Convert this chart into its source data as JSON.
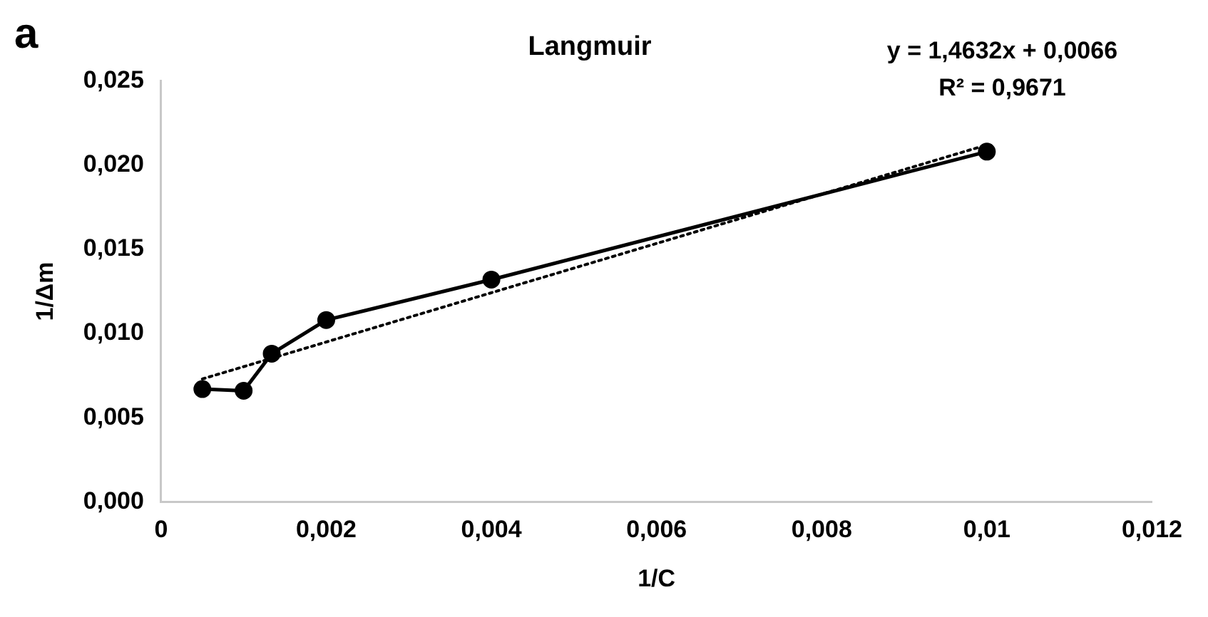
{
  "chart_data": {
    "type": "line",
    "title": "Langmuir",
    "xlabel": "1/C",
    "ylabel": "1/Δm",
    "annotations": [
      "a",
      "y = 1,4632x + 0,0066",
      "R² = 0,9671"
    ],
    "series": [
      {
        "type": "line",
        "color": "#000000",
        "marker": "circle",
        "line_style": "solid",
        "x": [
          0.0005,
          0.001,
          0.00134,
          0.002,
          0.004,
          0.01
        ],
        "values": [
          0.0067,
          0.0066,
          0.0088,
          0.0108,
          0.0132,
          0.0208
        ]
      },
      {
        "type": "line",
        "color": "#000000",
        "marker": "none",
        "line_style": "dotted",
        "x": [
          0.0005,
          0.01
        ],
        "values": [
          0.0073,
          0.0212
        ]
      }
    ],
    "xlim": [
      0,
      0.012
    ],
    "xticks": [
      {
        "value": 0,
        "label": "0"
      },
      {
        "value": 0.002,
        "label": "0,002"
      },
      {
        "value": 0.004,
        "label": "0,004"
      },
      {
        "value": 0.006,
        "label": "0,006"
      },
      {
        "value": 0.008,
        "label": "0,008"
      },
      {
        "value": 0.01,
        "label": "0,01"
      },
      {
        "value": 0.012,
        "label": "0,012"
      }
    ],
    "ylim": [
      0,
      0.025
    ],
    "yticks": [
      {
        "value": 0,
        "label": "0,000"
      },
      {
        "value": 0.005,
        "label": "0,005"
      },
      {
        "value": 0.01,
        "label": "0,010"
      },
      {
        "value": 0.015,
        "label": "0,015"
      },
      {
        "value": 0.02,
        "label": "0,020"
      },
      {
        "value": 0.025,
        "label": "0,025"
      }
    ],
    "grid": false,
    "legend": false
  }
}
